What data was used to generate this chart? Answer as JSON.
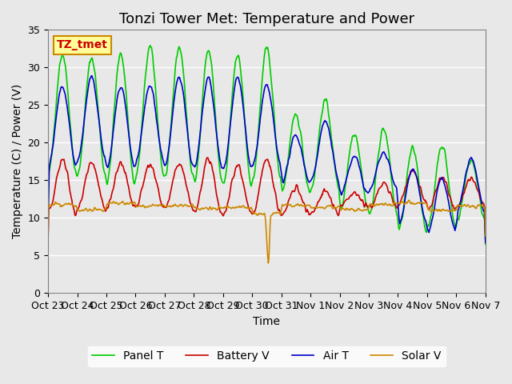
{
  "title": "Tonzi Tower Met: Temperature and Power",
  "xlabel": "Time",
  "ylabel": "Temperature (C) / Power (V)",
  "ylim": [
    0,
    35
  ],
  "yticks": [
    0,
    5,
    10,
    15,
    20,
    25,
    30,
    35
  ],
  "xtick_labels": [
    "Oct 23",
    "Oct 24",
    "Oct 25",
    "Oct 26",
    "Oct 27",
    "Oct 28",
    "Oct 29",
    "Oct 30",
    "Oct 31",
    "Nov 1",
    "Nov 2",
    "Nov 3",
    "Nov 4",
    "Nov 5",
    "Nov 6",
    "Nov 7"
  ],
  "legend_labels": [
    "Panel T",
    "Battery V",
    "Air T",
    "Solar V"
  ],
  "legend_colors": [
    "#00cc00",
    "#cc0000",
    "#0000cc",
    "#cc8800"
  ],
  "line_colors": [
    "#00cc00",
    "#cc0000",
    "#0000cc",
    "#cc8800"
  ],
  "annotation_text": "TZ_tmet",
  "annotation_color": "#cc0000",
  "annotation_bg": "#ffff99",
  "annotation_border": "#cc8800",
  "background_color": "#e8e8e8",
  "plot_bg": "#f0f0f0",
  "grid_color": "#ffffff",
  "title_fontsize": 13,
  "axis_label_fontsize": 10,
  "tick_fontsize": 9,
  "legend_fontsize": 10
}
